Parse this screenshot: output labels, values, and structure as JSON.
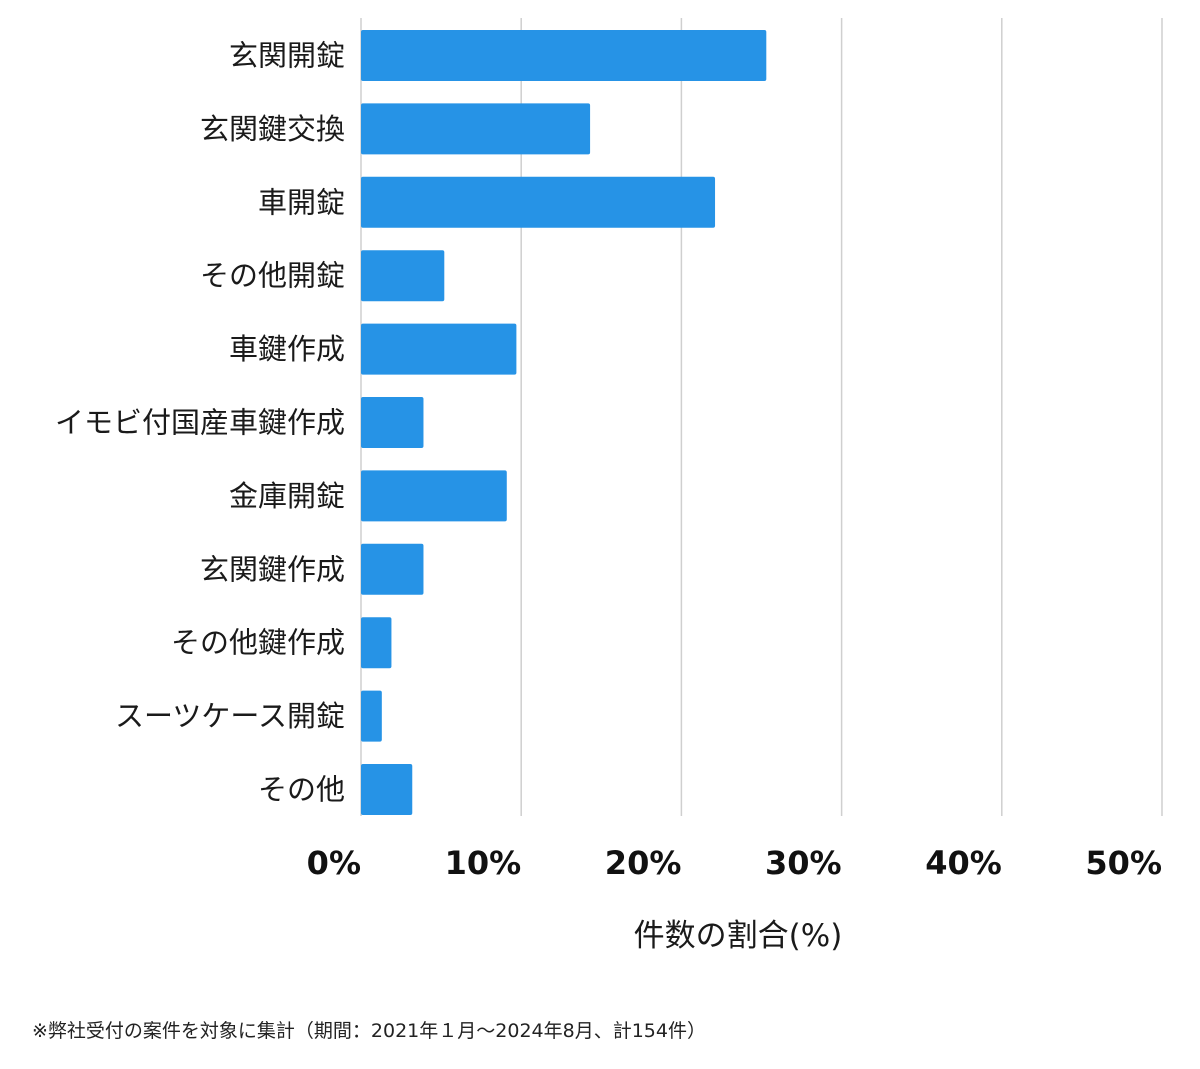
{
  "colors": {
    "bar": "#2693e6",
    "grid": "#cfcfcf",
    "text": "#1a1a1a"
  },
  "chart_data": {
    "type": "bar",
    "orientation": "horizontal",
    "categories": [
      "玄関開錠",
      "玄関鍵交換",
      "車開錠",
      "その他開錠",
      "車鍵作成",
      "イモビ付国産車鍵作成",
      "金庫開錠",
      "玄関鍵作成",
      "その他鍵作成",
      "スーツケース開錠",
      "その他"
    ],
    "values": [
      25.3,
      14.3,
      22.1,
      5.2,
      9.7,
      3.9,
      9.1,
      3.9,
      1.9,
      1.3,
      3.2
    ],
    "xlim": [
      0,
      50
    ],
    "xticks": [
      0,
      10,
      20,
      30,
      40,
      50
    ],
    "xtick_labels": [
      "0%",
      "10%",
      "20%",
      "30%",
      "40%",
      "50%"
    ],
    "xlabel": "件数の割合(%)",
    "grid": "vertical"
  },
  "footnote": "※弊社受付の案件を対象に集計（期間：2021年１月〜2024年8月、計154件）"
}
